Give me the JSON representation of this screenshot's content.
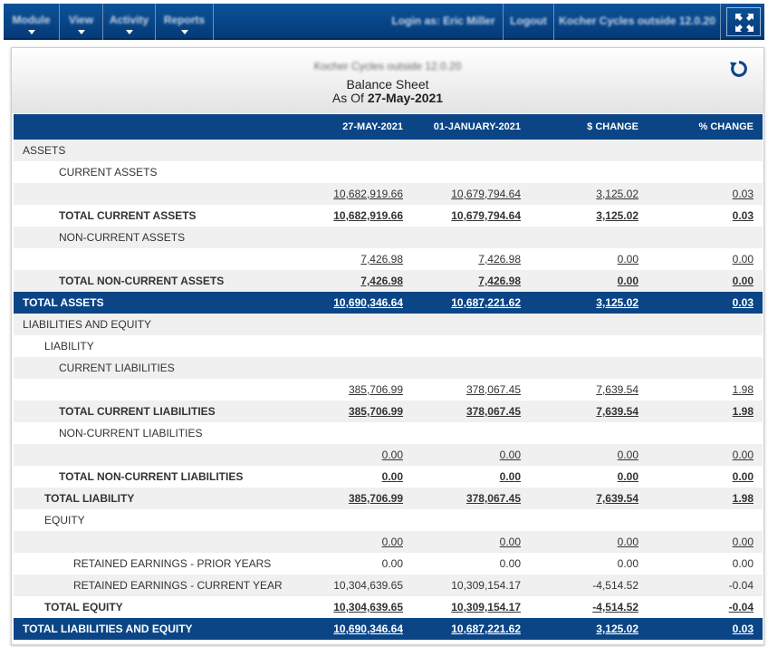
{
  "nav": {
    "menus": [
      {
        "label": "Module"
      },
      {
        "label": "View"
      },
      {
        "label": "Activity"
      },
      {
        "label": "Reports"
      }
    ],
    "login_text": "Login as: Eric Miller",
    "logout_label": "Logout",
    "company_selector": "Kocher Cycles outside 12.0.20",
    "expand_icon": "fullscreen-icon"
  },
  "report": {
    "company": "Kocher Cycles outside 12.0.20",
    "title": "Balance Sheet",
    "as_of_prefix": "As Of",
    "as_of_date": "27-May-2021",
    "refresh_icon": "refresh-icon"
  },
  "table": {
    "headers": [
      "",
      "27-MAY-2021",
      "01-JANUARY-2021",
      "$ CHANGE",
      "% CHANGE"
    ],
    "rows": [
      {
        "label": "ASSETS",
        "level": 1,
        "type": "section",
        "values": [
          "",
          "",
          "",
          ""
        ]
      },
      {
        "label": "CURRENT ASSETS",
        "level": 3,
        "type": "section",
        "values": [
          "",
          "",
          "",
          ""
        ]
      },
      {
        "label": "",
        "level": 3,
        "type": "link",
        "values": [
          "10,682,919.66",
          "10,679,794.64",
          "3,125.02",
          "0.03"
        ]
      },
      {
        "label": "TOTAL CURRENT ASSETS",
        "level": 3,
        "type": "total",
        "values": [
          "10,682,919.66",
          "10,679,794.64",
          "3,125.02",
          "0.03"
        ]
      },
      {
        "label": "NON-CURRENT ASSETS",
        "level": 3,
        "type": "section",
        "values": [
          "",
          "",
          "",
          ""
        ]
      },
      {
        "label": "",
        "level": 3,
        "type": "link",
        "values": [
          "7,426.98",
          "7,426.98",
          "0.00",
          "0.00"
        ]
      },
      {
        "label": "TOTAL NON-CURRENT ASSETS",
        "level": 3,
        "type": "total",
        "values": [
          "7,426.98",
          "7,426.98",
          "0.00",
          "0.00"
        ]
      },
      {
        "label": "TOTAL ASSETS",
        "level": 1,
        "type": "grand",
        "values": [
          "10,690,346.64",
          "10,687,221.62",
          "3,125.02",
          "0.03"
        ]
      },
      {
        "label": "LIABILITIES AND EQUITY",
        "level": 1,
        "type": "section",
        "values": [
          "",
          "",
          "",
          ""
        ]
      },
      {
        "label": "LIABILITY",
        "level": 2,
        "type": "section",
        "values": [
          "",
          "",
          "",
          ""
        ]
      },
      {
        "label": "CURRENT LIABILITIES",
        "level": 3,
        "type": "section",
        "values": [
          "",
          "",
          "",
          ""
        ]
      },
      {
        "label": "",
        "level": 3,
        "type": "link",
        "values": [
          "385,706.99",
          "378,067.45",
          "7,639.54",
          "1.98"
        ]
      },
      {
        "label": "TOTAL CURRENT LIABILITIES",
        "level": 3,
        "type": "total",
        "values": [
          "385,706.99",
          "378,067.45",
          "7,639.54",
          "1.98"
        ]
      },
      {
        "label": "NON-CURRENT LIABILITIES",
        "level": 3,
        "type": "section",
        "values": [
          "",
          "",
          "",
          ""
        ]
      },
      {
        "label": "",
        "level": 3,
        "type": "link",
        "values": [
          "0.00",
          "0.00",
          "0.00",
          "0.00"
        ]
      },
      {
        "label": "TOTAL NON-CURRENT LIABILITIES",
        "level": 3,
        "type": "total",
        "values": [
          "0.00",
          "0.00",
          "0.00",
          "0.00"
        ]
      },
      {
        "label": "TOTAL LIABILITY",
        "level": 2,
        "type": "total",
        "values": [
          "385,706.99",
          "378,067.45",
          "7,639.54",
          "1.98"
        ]
      },
      {
        "label": "EQUITY",
        "level": 2,
        "type": "section",
        "values": [
          "",
          "",
          "",
          ""
        ]
      },
      {
        "label": "",
        "level": 3,
        "type": "link",
        "values": [
          "0.00",
          "0.00",
          "0.00",
          "0.00"
        ]
      },
      {
        "label": "RETAINED EARNINGS - PRIOR YEARS",
        "level": 4,
        "type": "plain",
        "values": [
          "0.00",
          "0.00",
          "0.00",
          "0.00"
        ]
      },
      {
        "label": "RETAINED EARNINGS - CURRENT YEAR",
        "level": 4,
        "type": "plain",
        "values": [
          "10,304,639.65",
          "10,309,154.17",
          "-4,514.52",
          "-0.04"
        ]
      },
      {
        "label": "TOTAL EQUITY",
        "level": 2,
        "type": "total",
        "values": [
          "10,304,639.65",
          "10,309,154.17",
          "-4,514.52",
          "-0.04"
        ]
      },
      {
        "label": "TOTAL LIABILITIES AND EQUITY",
        "level": 1,
        "type": "grand",
        "values": [
          "10,690,346.64",
          "10,687,221.62",
          "3,125.02",
          "0.03"
        ]
      }
    ]
  },
  "colors": {
    "nav_bg": "#0b4a8f",
    "header_bg": "#0b4586",
    "row_alt": "#f0f0f0"
  }
}
